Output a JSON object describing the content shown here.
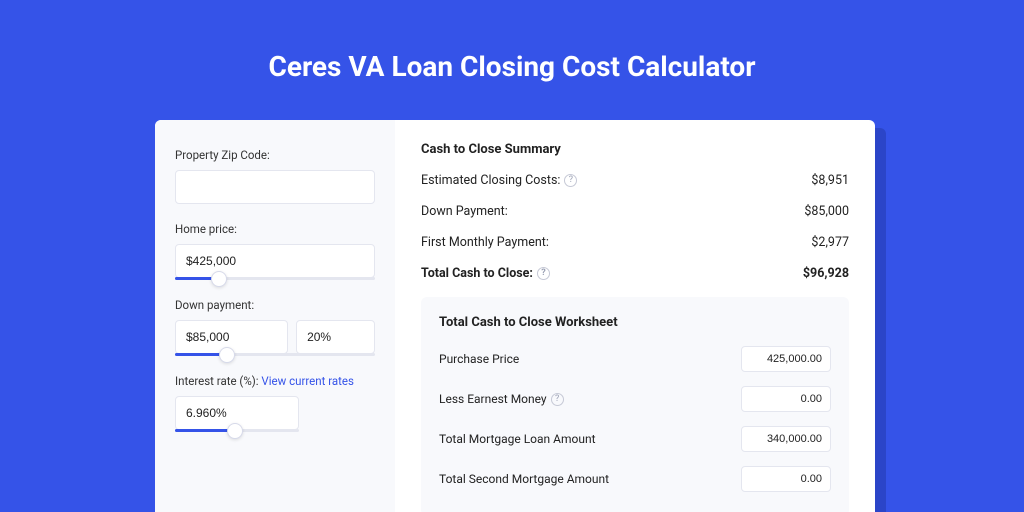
{
  "colors": {
    "page_bg": "#3553e8",
    "shadow": "#2b45c8",
    "card_bg": "#ffffff",
    "panel_bg": "#f8f9fc",
    "border": "#e4e6ef",
    "accent": "#3553e8",
    "text": "#222222",
    "muted": "#9aa0b4"
  },
  "header": {
    "title": "Ceres VA Loan Closing Cost Calculator"
  },
  "sidebar": {
    "zip": {
      "label": "Property Zip Code:",
      "value": ""
    },
    "home_price": {
      "label": "Home price:",
      "value": "$425,000",
      "slider_pct": 22
    },
    "down_payment": {
      "label": "Down payment:",
      "value": "$85,000",
      "pct_value": "20%",
      "slider_pct": 26
    },
    "interest": {
      "label_prefix": "Interest rate (%): ",
      "link_text": "View current rates",
      "value": "6.960%",
      "slider_pct": 48
    }
  },
  "summary": {
    "title": "Cash to Close Summary",
    "rows": [
      {
        "label": "Estimated Closing Costs:",
        "help": true,
        "value": "$8,951",
        "bold": false
      },
      {
        "label": "Down Payment:",
        "help": false,
        "value": "$85,000",
        "bold": false
      },
      {
        "label": "First Monthly Payment:",
        "help": false,
        "value": "$2,977",
        "bold": false
      },
      {
        "label": "Total Cash to Close:",
        "help": true,
        "value": "$96,928",
        "bold": true
      }
    ]
  },
  "worksheet": {
    "title": "Total Cash to Close Worksheet",
    "rows": [
      {
        "label": "Purchase Price",
        "help": false,
        "value": "425,000.00"
      },
      {
        "label": "Less Earnest Money",
        "help": true,
        "value": "0.00"
      },
      {
        "label": "Total Mortgage Loan Amount",
        "help": false,
        "value": "340,000.00"
      },
      {
        "label": "Total Second Mortgage Amount",
        "help": false,
        "value": "0.00"
      }
    ]
  }
}
